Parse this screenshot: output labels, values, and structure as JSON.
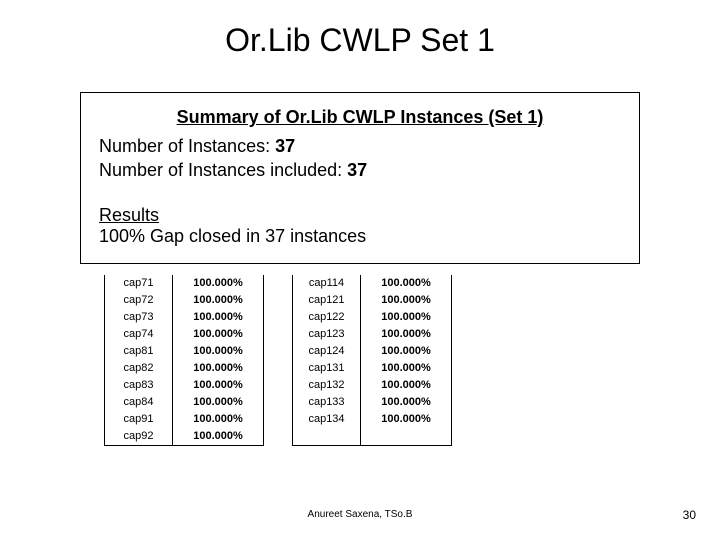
{
  "title": "Or.Lib CWLP Set 1",
  "summary": {
    "heading": "Summary of Or.Lib CWLP Instances (Set 1)",
    "line1_prefix": "Number of Instances: ",
    "line1_value": "37",
    "line2_prefix": "Number of Instances included: ",
    "line2_value": "37",
    "results_heading": "Results",
    "results_prefix": "100% Gap closed in ",
    "results_value": "37",
    "results_suffix": " instances"
  },
  "table": {
    "pairs": [
      {
        "names": [
          "cap71",
          "cap72",
          "cap73",
          "cap74",
          "cap81",
          "cap82",
          "cap83",
          "cap84",
          "cap91",
          "cap92"
        ],
        "pcts": [
          "100.000%",
          "100.000%",
          "100.000%",
          "100.000%",
          "100.000%",
          "100.000%",
          "100.000%",
          "100.000%",
          "100.000%",
          "100.000%"
        ]
      },
      {
        "names": [
          "cap114",
          "cap121",
          "cap122",
          "cap123",
          "cap124",
          "cap131",
          "cap132",
          "cap133",
          "cap134"
        ],
        "pcts": [
          "100.000%",
          "100.000%",
          "100.000%",
          "100.000%",
          "100.000%",
          "100.000%",
          "100.000%",
          "100.000%",
          "100.000%"
        ]
      }
    ],
    "colors": {
      "border": "#000000",
      "text": "#000000",
      "bg": "#ffffff"
    },
    "font_size_pt": 11
  },
  "footer": {
    "author": "Anureet Saxena, TSo.B",
    "page": "30"
  }
}
